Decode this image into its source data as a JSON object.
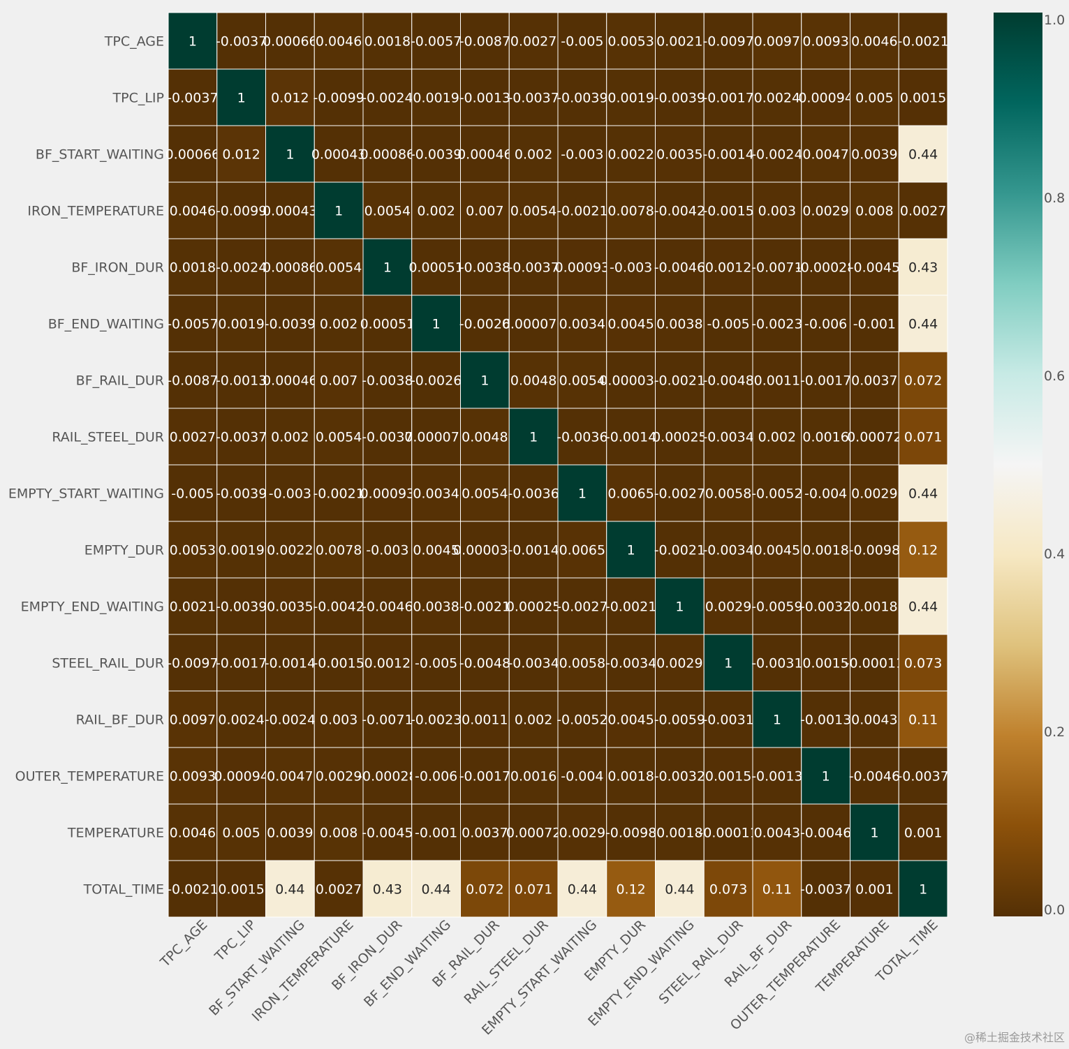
{
  "chart_data": {
    "type": "heatmap",
    "title": "",
    "labels": [
      "TPC_AGE",
      "TPC_LIP",
      "BF_START_WAITING",
      "IRON_TEMPERATURE",
      "BF_IRON_DUR",
      "BF_END_WAITING",
      "BF_RAIL_DUR",
      "RAIL_STEEL_DUR",
      "EMPTY_START_WAITING",
      "EMPTY_DUR",
      "EMPTY_END_WAITING",
      "STEEL_RAIL_DUR",
      "RAIL_BF_DUR",
      "OUTER_TEMPERATURE",
      "TEMPERATURE",
      "TOTAL_TIME"
    ],
    "values": [
      [
        1,
        -0.0037,
        0.00066,
        0.0046,
        0.0018,
        -0.0057,
        -0.0087,
        0.0027,
        -0.005,
        0.0053,
        0.0021,
        -0.0097,
        0.0097,
        0.0093,
        0.0046,
        -0.0021
      ],
      [
        -0.0037,
        1,
        0.012,
        -0.0099,
        -0.0024,
        0.0019,
        -0.0013,
        -0.0037,
        -0.0039,
        0.0019,
        -0.0039,
        -0.0017,
        0.0024,
        0.00094,
        0.005,
        0.0015
      ],
      [
        0.00066,
        0.012,
        1,
        0.00043,
        0.00086,
        -0.0039,
        0.00046,
        0.002,
        -0.003,
        0.0022,
        0.0035,
        -0.0014,
        -0.0024,
        0.0047,
        0.0039,
        0.44
      ],
      [
        0.0046,
        -0.0099,
        0.00043,
        1,
        0.0054,
        0.002,
        0.007,
        0.0054,
        -0.0021,
        0.0078,
        -0.0042,
        -0.0015,
        0.003,
        0.0029,
        0.008,
        0.0027
      ],
      [
        0.0018,
        -0.0024,
        0.00086,
        0.0054,
        1,
        0.00051,
        -0.0038,
        -0.0037,
        0.00093,
        -0.003,
        -0.0046,
        0.0012,
        -0.0071,
        -0.00028,
        -0.0045,
        0.43
      ],
      [
        -0.0057,
        0.0019,
        -0.0039,
        0.002,
        0.00051,
        1,
        -0.0026,
        7.8e-05,
        0.0034,
        0.0045,
        0.0038,
        -0.005,
        -0.0023,
        -0.006,
        -0.001,
        0.44
      ],
      [
        -0.0087,
        -0.0013,
        0.00046,
        0.007,
        -0.0038,
        -0.0026,
        1,
        0.0048,
        0.0054,
        3.4e-05,
        -0.0021,
        -0.0048,
        0.0011,
        -0.0017,
        0.0037,
        0.072
      ],
      [
        0.0027,
        -0.0037,
        0.002,
        0.0054,
        -0.0037,
        7.8e-05,
        0.0048,
        1,
        -0.0036,
        -0.0014,
        0.00025,
        -0.0034,
        0.002,
        0.0016,
        0.00072,
        0.071
      ],
      [
        -0.005,
        -0.0039,
        -0.003,
        -0.0021,
        0.00093,
        0.0034,
        0.0054,
        -0.0036,
        1,
        0.0065,
        -0.0027,
        0.0058,
        -0.0052,
        -0.004,
        0.0029,
        0.44
      ],
      [
        0.0053,
        0.0019,
        0.0022,
        0.0078,
        -0.003,
        0.0045,
        3.4e-05,
        -0.0014,
        0.0065,
        1,
        -0.0021,
        -0.0034,
        0.0045,
        0.0018,
        -0.0098,
        0.12
      ],
      [
        0.0021,
        -0.0039,
        0.0035,
        -0.0042,
        -0.0046,
        0.0038,
        -0.0021,
        0.00025,
        -0.0027,
        -0.0021,
        1,
        0.0029,
        -0.0059,
        -0.0032,
        0.0018,
        0.44
      ],
      [
        -0.0097,
        -0.0017,
        -0.0014,
        -0.0015,
        0.0012,
        -0.005,
        -0.0048,
        -0.0034,
        0.0058,
        -0.0034,
        0.0029,
        1,
        -0.0031,
        0.0015,
        -0.00011,
        0.073
      ],
      [
        0.0097,
        0.0024,
        -0.0024,
        0.003,
        -0.0071,
        -0.0023,
        0.0011,
        0.002,
        -0.0052,
        0.0045,
        -0.0059,
        -0.0031,
        1,
        -0.0013,
        0.0043,
        0.11
      ],
      [
        0.0093,
        0.00094,
        0.0047,
        0.0029,
        -0.00028,
        -0.006,
        -0.0017,
        0.0016,
        -0.004,
        0.0018,
        -0.0032,
        0.0015,
        -0.0013,
        1,
        -0.0046,
        -0.0037
      ],
      [
        0.0046,
        0.005,
        0.0039,
        0.008,
        -0.0045,
        -0.001,
        0.0037,
        0.00072,
        0.0029,
        -0.0098,
        0.0018,
        -0.00011,
        0.0043,
        -0.0046,
        1,
        0.001
      ],
      [
        -0.0021,
        0.0015,
        0.44,
        0.0027,
        0.43,
        0.44,
        0.072,
        0.071,
        0.44,
        0.12,
        0.44,
        0.073,
        0.11,
        -0.0037,
        0.001,
        1
      ]
    ],
    "colorbar": {
      "min": 0.0,
      "max": 1.0,
      "ticks": [
        "0.0",
        "0.2",
        "0.4",
        "0.6",
        "0.8",
        "1.0"
      ]
    },
    "colormap": [
      "#543005",
      "#8c510a",
      "#bf812d",
      "#dfc27d",
      "#f6e8c3",
      "#f5f5f5",
      "#c7eae5",
      "#80cdc1",
      "#35978f",
      "#01665e",
      "#003c30"
    ]
  },
  "watermark": "@稀土掘金技术社区"
}
